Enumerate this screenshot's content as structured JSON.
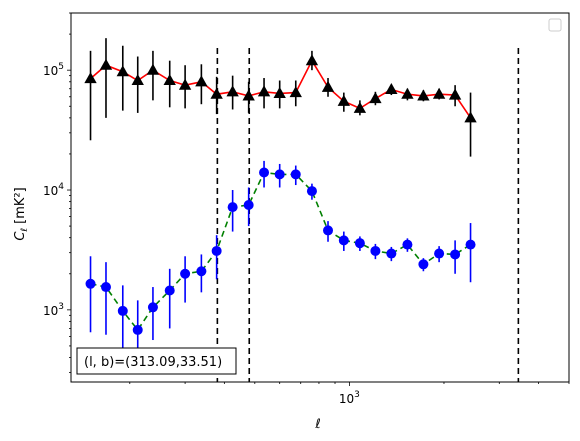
{
  "chart_data": {
    "type": "scatter",
    "xscale": "log",
    "yscale": "log",
    "xlim": [
      130,
      5000
    ],
    "ylim": [
      250,
      300000
    ],
    "xlabel": "ℓ",
    "ylabel_main": "C",
    "ylabel_sub": "ℓ",
    "ylabel_unit": "[mK²]",
    "x_tick_labels": [
      {
        "value": 1000,
        "base": "10",
        "exp": "3"
      }
    ],
    "y_tick_labels": [
      {
        "value": 1000,
        "base": "10",
        "exp": "3"
      },
      {
        "value": 10000,
        "base": "10",
        "exp": "4"
      },
      {
        "value": 100000,
        "base": "10",
        "exp": "5"
      }
    ],
    "vlines": [
      380,
      480,
      3450
    ],
    "vline_style": "dashed",
    "vline_color": "#000000",
    "annotation": "(l, b)=(313.09,33.51)",
    "legend": {
      "placement": "top-right",
      "entries": []
    },
    "series": [
      {
        "color": "#ff0000",
        "linestyle": "solid",
        "marker": "triangle",
        "marker_color": "#000000",
        "errorbar_color": "#000000",
        "points": [
          {
            "x": 150,
            "y": 85000,
            "lo": 26000,
            "hi": 145000
          },
          {
            "x": 168,
            "y": 110000,
            "lo": 40000,
            "hi": 185000
          },
          {
            "x": 190,
            "y": 97000,
            "lo": 46000,
            "hi": 160000
          },
          {
            "x": 212,
            "y": 82000,
            "lo": 44000,
            "hi": 130000
          },
          {
            "x": 237,
            "y": 100000,
            "lo": 56000,
            "hi": 145000
          },
          {
            "x": 268,
            "y": 82000,
            "lo": 49000,
            "hi": 120000
          },
          {
            "x": 300,
            "y": 75000,
            "lo": 48000,
            "hi": 110000
          },
          {
            "x": 338,
            "y": 80000,
            "lo": 52000,
            "hi": 112000
          },
          {
            "x": 378,
            "y": 63000,
            "lo": 43000,
            "hi": 88000
          },
          {
            "x": 425,
            "y": 66000,
            "lo": 47000,
            "hi": 90000
          },
          {
            "x": 478,
            "y": 61000,
            "lo": 44000,
            "hi": 80000
          },
          {
            "x": 535,
            "y": 66000,
            "lo": 48000,
            "hi": 86000
          },
          {
            "x": 600,
            "y": 64000,
            "lo": 48000,
            "hi": 82000
          },
          {
            "x": 675,
            "y": 65000,
            "lo": 50000,
            "hi": 82000
          },
          {
            "x": 760,
            "y": 120000,
            "lo": 100000,
            "hi": 145000
          },
          {
            "x": 855,
            "y": 72000,
            "lo": 60000,
            "hi": 86000
          },
          {
            "x": 960,
            "y": 55000,
            "lo": 45000,
            "hi": 65000
          },
          {
            "x": 1080,
            "y": 48000,
            "lo": 42000,
            "hi": 56000
          },
          {
            "x": 1210,
            "y": 58000,
            "lo": 51000,
            "hi": 66000
          },
          {
            "x": 1360,
            "y": 69000,
            "lo": 62000,
            "hi": 76000
          },
          {
            "x": 1530,
            "y": 63000,
            "lo": 56000,
            "hi": 70000
          },
          {
            "x": 1720,
            "y": 61000,
            "lo": 55000,
            "hi": 68000
          },
          {
            "x": 1930,
            "y": 63000,
            "lo": 57000,
            "hi": 70000
          },
          {
            "x": 2170,
            "y": 62000,
            "lo": 50000,
            "hi": 75000
          },
          {
            "x": 2430,
            "y": 40000,
            "lo": 19000,
            "hi": 65000
          }
        ]
      },
      {
        "color": "#008000",
        "linestyle": "dashed",
        "marker": "circle",
        "marker_color": "#0000ff",
        "errorbar_color": "#0000ff",
        "points": [
          {
            "x": 150,
            "y": 1650,
            "lo": 650,
            "hi": 2800
          },
          {
            "x": 168,
            "y": 1550,
            "lo": 620,
            "hi": 2500
          },
          {
            "x": 190,
            "y": 980,
            "lo": 390,
            "hi": 1600
          },
          {
            "x": 212,
            "y": 680,
            "lo": 300,
            "hi": 1200
          },
          {
            "x": 237,
            "y": 1050,
            "lo": 560,
            "hi": 1550
          },
          {
            "x": 268,
            "y": 1450,
            "lo": 700,
            "hi": 2200
          },
          {
            "x": 300,
            "y": 2000,
            "lo": 1150,
            "hi": 2800
          },
          {
            "x": 338,
            "y": 2100,
            "lo": 1400,
            "hi": 2900
          },
          {
            "x": 378,
            "y": 3100,
            "lo": 1800,
            "hi": 4200
          },
          {
            "x": 425,
            "y": 7200,
            "lo": 4500,
            "hi": 10000
          },
          {
            "x": 478,
            "y": 7500,
            "lo": 5000,
            "hi": 10500
          },
          {
            "x": 535,
            "y": 14000,
            "lo": 10500,
            "hi": 17500
          },
          {
            "x": 600,
            "y": 13500,
            "lo": 10500,
            "hi": 16500
          },
          {
            "x": 675,
            "y": 13500,
            "lo": 11000,
            "hi": 16000
          },
          {
            "x": 760,
            "y": 9800,
            "lo": 8300,
            "hi": 11300
          },
          {
            "x": 855,
            "y": 4600,
            "lo": 3700,
            "hi": 5500
          },
          {
            "x": 960,
            "y": 3800,
            "lo": 3100,
            "hi": 4500
          },
          {
            "x": 1080,
            "y": 3600,
            "lo": 3100,
            "hi": 4100
          },
          {
            "x": 1210,
            "y": 3100,
            "lo": 2650,
            "hi": 3550
          },
          {
            "x": 1360,
            "y": 2950,
            "lo": 2550,
            "hi": 3350
          },
          {
            "x": 1530,
            "y": 3500,
            "lo": 3050,
            "hi": 3950
          },
          {
            "x": 1720,
            "y": 2400,
            "lo": 2100,
            "hi": 2700
          },
          {
            "x": 1930,
            "y": 2950,
            "lo": 2500,
            "hi": 3400
          },
          {
            "x": 2170,
            "y": 2900,
            "lo": 2000,
            "hi": 3800
          },
          {
            "x": 2430,
            "y": 3500,
            "lo": 1700,
            "hi": 5300
          }
        ]
      }
    ]
  }
}
